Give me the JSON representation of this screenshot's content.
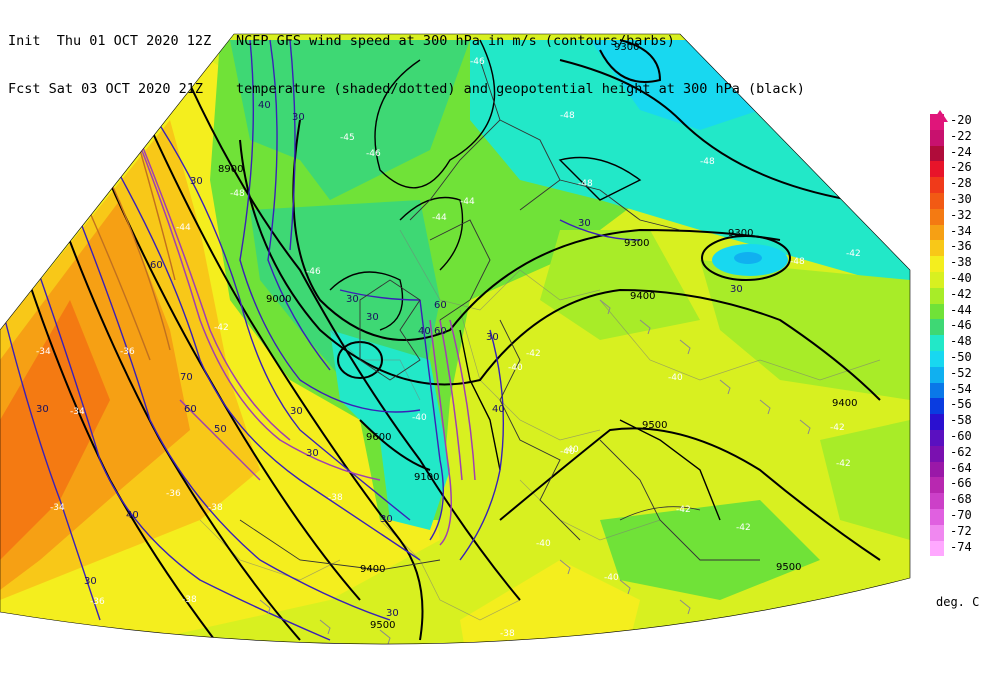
{
  "header": {
    "line1_left": "Init  Thu 01 OCT 2020 12Z",
    "line1_right": "NCEP GFS wind speed at 300 hPa in m/s (contours/barbs)",
    "line2_left": "Fcst Sat 03 OCT 2020 21Z",
    "line2_right": "temperature (shaded/dotted) and geopotential height at 300 hPa (black)"
  },
  "legend": {
    "units": "deg. C",
    "items": [
      {
        "label": "-20",
        "color": "#e0157a"
      },
      {
        "label": "-22",
        "color": "#c8116e"
      },
      {
        "label": "-24",
        "color": "#b00c3a"
      },
      {
        "label": "-26",
        "color": "#e8142a"
      },
      {
        "label": "-28",
        "color": "#f03a1a"
      },
      {
        "label": "-30",
        "color": "#f25a14"
      },
      {
        "label": "-32",
        "color": "#f47a12"
      },
      {
        "label": "-34",
        "color": "#f6a014"
      },
      {
        "label": "-36",
        "color": "#f8c818"
      },
      {
        "label": "-38",
        "color": "#f4ee1e"
      },
      {
        "label": "-40",
        "color": "#d8f020"
      },
      {
        "label": "-42",
        "color": "#a8ec28"
      },
      {
        "label": "-44",
        "color": "#70e238"
      },
      {
        "label": "-46",
        "color": "#3ed874"
      },
      {
        "label": "-48",
        "color": "#22e8c8"
      },
      {
        "label": "-50",
        "color": "#18d8f0"
      },
      {
        "label": "-52",
        "color": "#10b0f0"
      },
      {
        "label": "-54",
        "color": "#0a78e8"
      },
      {
        "label": "-56",
        "color": "#0a3ce0"
      },
      {
        "label": "-58",
        "color": "#2a10d0"
      },
      {
        "label": "-60",
        "color": "#5a10c0"
      },
      {
        "label": "-62",
        "color": "#7a10b0"
      },
      {
        "label": "-64",
        "color": "#9a18a8"
      },
      {
        "label": "-66",
        "color": "#b828b0"
      },
      {
        "label": "-68",
        "color": "#cc40c8"
      },
      {
        "label": "-70",
        "color": "#e060e0"
      },
      {
        "label": "-72",
        "color": "#f088f0"
      },
      {
        "label": "-74",
        "color": "#ffa8ff"
      }
    ]
  },
  "map": {
    "height_labels": [
      "9300",
      "8900",
      "9000",
      "9300",
      "9300",
      "9400",
      "9400",
      "9500",
      "9600",
      "9100",
      "9400",
      "9500",
      "9500"
    ],
    "wind_labels": [
      "40",
      "30",
      "30",
      "60",
      "30",
      "30",
      "60",
      "40",
      "60",
      "70",
      "60",
      "50",
      "30",
      "30",
      "40",
      "30",
      "30",
      "30",
      "30",
      "40",
      "30",
      "30",
      "30"
    ],
    "temp_labels": [
      "-45",
      "-46",
      "-48",
      "-48",
      "-46",
      "-48",
      "-48",
      "-44",
      "-44",
      "-42",
      "-42",
      "-42",
      "-42",
      "-42",
      "-42",
      "-40",
      "-40",
      "-40",
      "-40",
      "-40",
      "-38",
      "-38",
      "-38",
      "-38",
      "-38",
      "-36",
      "-36",
      "-36",
      "-34",
      "-34",
      "-34",
      "-44",
      "-48",
      "-46",
      "-40",
      "-40",
      "-42"
    ]
  }
}
